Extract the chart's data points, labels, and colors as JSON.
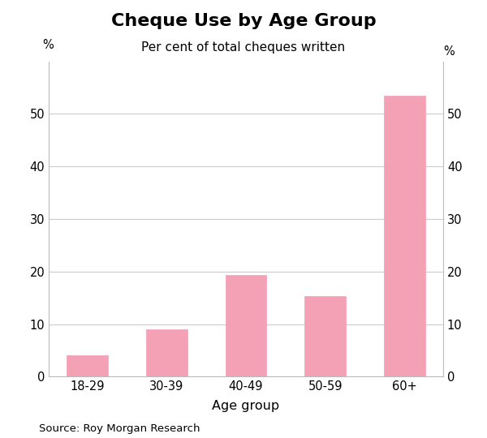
{
  "title": "Cheque Use by Age Group",
  "subtitle": "Per cent of total cheques written",
  "categories": [
    "18-29",
    "30-39",
    "40-49",
    "50-59",
    "60+"
  ],
  "values": [
    4.0,
    9.0,
    19.3,
    15.3,
    53.4
  ],
  "bar_color": "#F4A0B5",
  "xlabel": "Age group",
  "ylabel_left": "%",
  "ylabel_right": "%",
  "ylim": [
    0,
    60
  ],
  "yticks": [
    0,
    10,
    20,
    30,
    40,
    50
  ],
  "source": "Source: Roy Morgan Research",
  "background_color": "#ffffff",
  "title_fontsize": 16,
  "subtitle_fontsize": 11,
  "tick_fontsize": 10.5,
  "label_fontsize": 11.5,
  "source_fontsize": 9.5,
  "bar_width": 0.52
}
